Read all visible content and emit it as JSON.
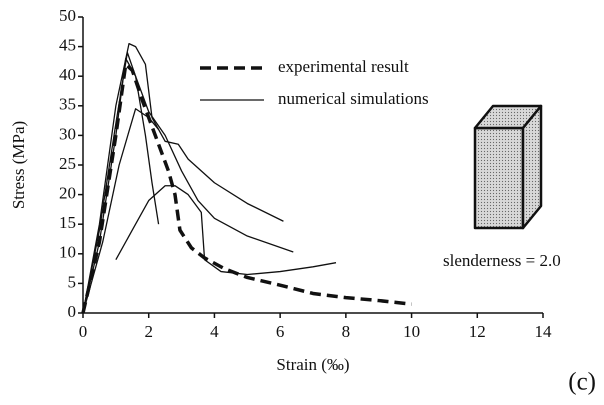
{
  "chart_data": {
    "type": "line",
    "xlabel": "Strain (‰)",
    "ylabel": "Stress (MPa)",
    "xlim": [
      0,
      14
    ],
    "ylim": [
      0,
      50
    ],
    "xticks": [
      0,
      2,
      4,
      6,
      8,
      10,
      12,
      14
    ],
    "yticks": [
      0,
      5,
      10,
      15,
      20,
      25,
      30,
      35,
      40,
      45,
      50
    ],
    "legend": "upper center",
    "series": [
      {
        "name": "experimental result",
        "color": "#111111",
        "style": "dashed",
        "curves": [
          {
            "x": [
              0,
              0.5,
              1,
              1.3,
              1.5,
              1.8,
              2.2,
              2.6,
              2.8,
              2.95,
              3.3,
              3.7,
              4.3,
              5,
              6,
              7,
              8,
              9,
              10
            ],
            "values": [
              0,
              12,
              30,
              42,
              41,
              36,
              30,
              24,
              20,
              14,
              11,
              9.3,
              7.5,
              6,
              4.7,
              3.3,
              2.6,
              2.1,
              1.5
            ]
          }
        ]
      },
      {
        "name": "numerical simulations",
        "color": "#111111",
        "style": "solid",
        "curves": [
          {
            "x": [
              0,
              0.5,
              1,
              1.4,
              1.6,
              1.9,
              2.1,
              2.5,
              2.9,
              3.2,
              4,
              5,
              6.1
            ],
            "values": [
              0,
              15,
              35,
              45.5,
              45,
              42,
              33,
              29,
              28.5,
              26,
              22,
              18.5,
              15.5
            ]
          },
          {
            "x": [
              0,
              0.5,
              1,
              1.3,
              1.6,
              2,
              2.5,
              3,
              3.5,
              4,
              5,
              6.4
            ],
            "values": [
              0,
              12,
              30,
              43,
              40,
              34,
              30,
              24,
              19,
              16,
              13,
              10.3
            ]
          },
          {
            "x": [
              1,
              1.5,
              2,
              2.5,
              2.8,
              3.2,
              3.6,
              3.7,
              4.2,
              5,
              6,
              7,
              7.7
            ],
            "values": [
              9,
              14,
              19,
              21.5,
              21.5,
              20,
              17,
              9,
              7,
              6.5,
              7,
              7.8,
              8.5
            ]
          },
          {
            "x": [
              0,
              0.6,
              1.1,
              1.6,
              2,
              2.3
            ],
            "values": [
              0,
              12,
              25,
              34.5,
              33,
              31
            ]
          },
          {
            "x": [
              0,
              0.5,
              1,
              1.35,
              1.6,
              1.9,
              2.1,
              2.3
            ],
            "values": [
              0,
              14,
              32,
              44,
              40,
              30,
              22,
              15
            ]
          }
        ]
      }
    ],
    "annotations": [
      "slenderness = 2.0",
      "(c)"
    ]
  }
}
